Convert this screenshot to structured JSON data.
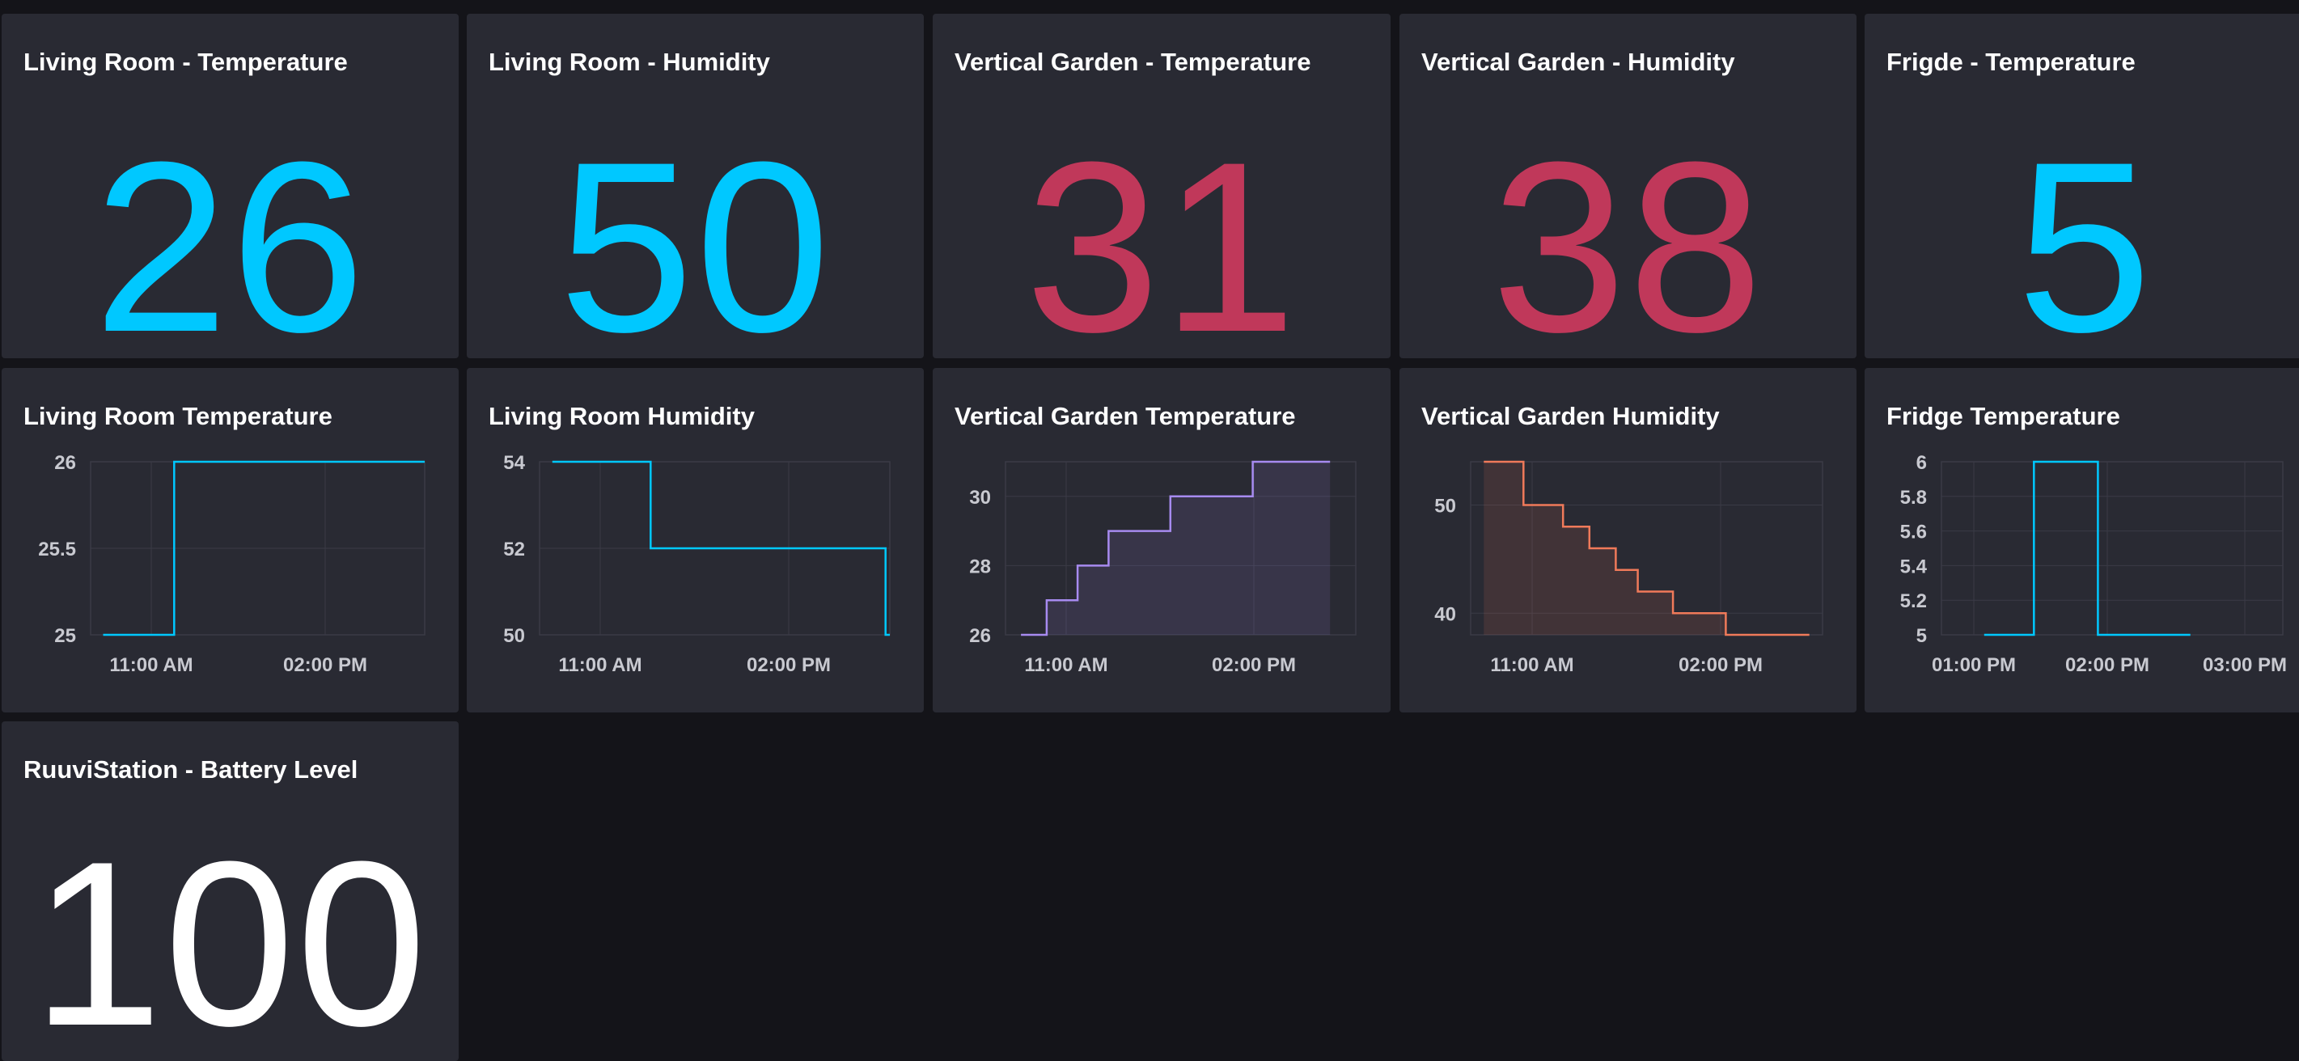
{
  "colors": {
    "cyan": "#00c8ff",
    "red": "#c0385a",
    "white": "#ffffff",
    "purple": "#a78bf0",
    "orange": "#f07a5a"
  },
  "stats": [
    {
      "title": "Living Room - Temperature",
      "value": "26",
      "color": "#00c8ff"
    },
    {
      "title": "Living Room - Humidity",
      "value": "50",
      "color": "#00c8ff"
    },
    {
      "title": "Vertical Garden - Temperature",
      "value": "31",
      "color": "#c0385a"
    },
    {
      "title": "Vertical Garden - Humidity",
      "value": "38",
      "color": "#c0385a"
    },
    {
      "title": "Frigde - Temperature",
      "value": "5",
      "color": "#00c8ff"
    },
    {
      "title": "RuuviStation - Battery Level",
      "value": "100",
      "color": "#ffffff"
    }
  ],
  "charts": [
    {
      "title": "Living Room Temperature"
    },
    {
      "title": "Living Room Humidity"
    },
    {
      "title": "Vertical Garden Temperature"
    },
    {
      "title": "Vertical Garden Humidity"
    },
    {
      "title": "Fridge Temperature"
    }
  ],
  "chart_data": [
    {
      "type": "line",
      "title": "Living Room Temperature",
      "step": true,
      "fill": false,
      "color": "#00c8ff",
      "ylim": [
        25,
        26
      ],
      "yticks": [
        "26",
        "25.5",
        "25"
      ],
      "xticks": [
        "11:00 AM",
        "02:00 PM"
      ],
      "x": [
        "10:10 AM",
        "11:35 AM",
        "04:35 PM"
      ],
      "series": [
        {
          "values": [
            25,
            26,
            26
          ]
        }
      ]
    },
    {
      "type": "line",
      "title": "Living Room Humidity",
      "step": true,
      "fill": false,
      "color": "#00c8ff",
      "ylim": [
        50,
        54
      ],
      "yticks": [
        "54",
        "52",
        "50"
      ],
      "xticks": [
        "11:00 AM",
        "02:00 PM"
      ],
      "x": [
        "10:00 AM",
        "11:55 AM",
        "04:30 PM",
        "04:35 PM"
      ],
      "series": [
        {
          "values": [
            54,
            52,
            50,
            50
          ]
        }
      ]
    },
    {
      "type": "area",
      "title": "Vertical Garden Temperature",
      "step": true,
      "fill": true,
      "color": "#a78bf0",
      "ylim": [
        26,
        31
      ],
      "yticks": [
        "30",
        "28",
        "26"
      ],
      "xticks": [
        "11:00 AM",
        "02:00 PM"
      ],
      "x": [
        "10:00 AM",
        "10:25 AM",
        "10:55 AM",
        "11:25 AM",
        "12:25 PM",
        "01:45 PM",
        "03:00 PM"
      ],
      "series": [
        {
          "values": [
            26,
            27,
            28,
            29,
            30,
            31,
            31
          ]
        }
      ]
    },
    {
      "type": "area",
      "title": "Vertical Garden Humidity",
      "step": true,
      "fill": true,
      "color": "#f07a5a",
      "ylim": [
        38,
        54
      ],
      "yticks": [
        "50",
        "40"
      ],
      "xticks": [
        "11:00 AM",
        "02:00 PM"
      ],
      "x": [
        "10:00 AM",
        "10:45 AM",
        "11:30 AM",
        "12:00 PM",
        "12:30 PM",
        "12:55 PM",
        "01:35 PM",
        "02:35 PM",
        "03:50 PM",
        "04:10 PM"
      ],
      "series": [
        {
          "values": [
            54,
            50,
            48,
            46,
            44,
            42,
            40,
            38,
            38,
            38
          ]
        }
      ]
    },
    {
      "type": "line",
      "title": "Fridge Temperature",
      "step": true,
      "fill": false,
      "color": "#00c8ff",
      "ylim": [
        5,
        6
      ],
      "yticks": [
        "6",
        "5.8",
        "5.6",
        "5.4",
        "5.2",
        "5"
      ],
      "xticks": [
        "01:00 PM",
        "02:00 PM",
        "03:00 PM"
      ],
      "x": [
        "01:00 PM",
        "01:35 PM",
        "02:20 PM",
        "03:25 PM"
      ],
      "series": [
        {
          "values": [
            5,
            6,
            5,
            5
          ]
        }
      ]
    }
  ]
}
